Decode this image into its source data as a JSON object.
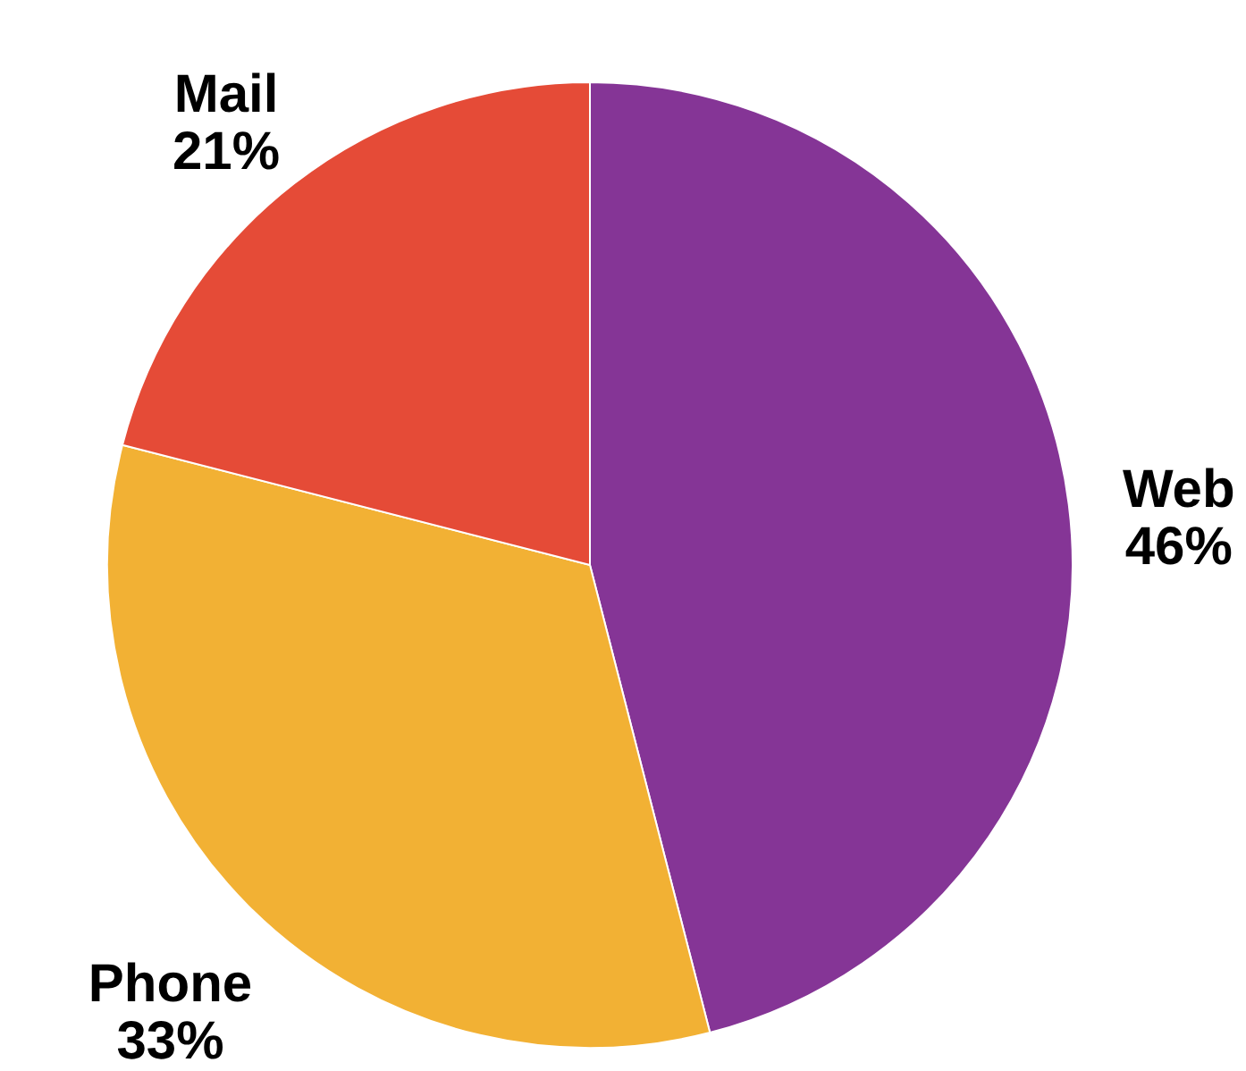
{
  "chart_data": {
    "type": "pie",
    "categories": [
      "Web",
      "Phone",
      "Mail"
    ],
    "values": [
      46,
      33,
      21
    ],
    "colors": [
      "#853596",
      "#f2b134",
      "#e54b37"
    ],
    "value_labels": [
      "46%",
      "33%",
      "21%"
    ]
  }
}
